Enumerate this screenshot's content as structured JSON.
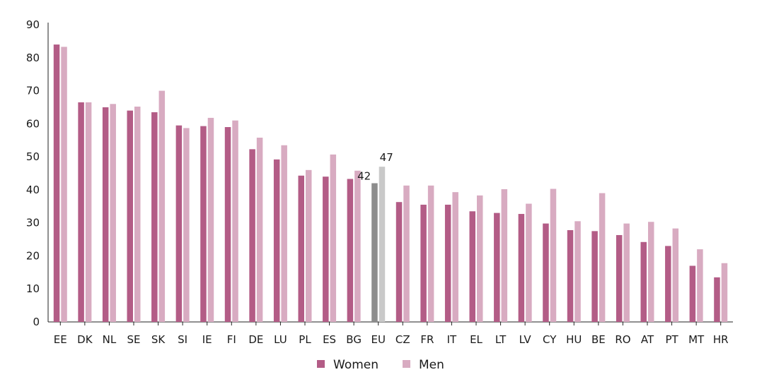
{
  "chart_data": {
    "type": "bar",
    "categories": [
      "EE",
      "DK",
      "NL",
      "SE",
      "SK",
      "SI",
      "IE",
      "FI",
      "DE",
      "LU",
      "PL",
      "ES",
      "BG",
      "EU",
      "CZ",
      "FR",
      "IT",
      "EL",
      "LT",
      "LV",
      "CY",
      "HU",
      "BE",
      "RO",
      "AT",
      "PT",
      "MT",
      "HR"
    ],
    "series": [
      {
        "name": "Women",
        "color": "#b35c86",
        "values": [
          84,
          66.5,
          65,
          64,
          63.5,
          59.5,
          59.3,
          59,
          52.3,
          49.2,
          44.3,
          44,
          43.3,
          42,
          36.3,
          35.5,
          35.5,
          33.5,
          33,
          32.7,
          29.8,
          27.8,
          27.5,
          26.3,
          24.2,
          23,
          17,
          13.5
        ]
      },
      {
        "name": "Men",
        "color": "#d8abc1",
        "values": [
          83.3,
          66.5,
          66,
          65.2,
          70,
          58.7,
          61.8,
          61,
          55.8,
          53.5,
          46,
          50.7,
          45.8,
          47,
          41.3,
          41.3,
          39.3,
          38.3,
          40.2,
          35.8,
          40.3,
          30.5,
          39,
          29.8,
          30.3,
          28.3,
          22,
          17.8
        ]
      }
    ],
    "highlight": {
      "category": "EU",
      "colors": [
        "#8c8c8c",
        "#c9c9c9"
      ],
      "labels": [
        "42",
        "47"
      ]
    },
    "ylim": [
      0,
      90
    ],
    "yticks": [
      "0",
      "10",
      "20",
      "30",
      "40",
      "50",
      "60",
      "70",
      "80",
      "90"
    ],
    "grid": false,
    "legend_position": "bottom-center",
    "title": "",
    "xlabel": "",
    "ylabel": ""
  }
}
